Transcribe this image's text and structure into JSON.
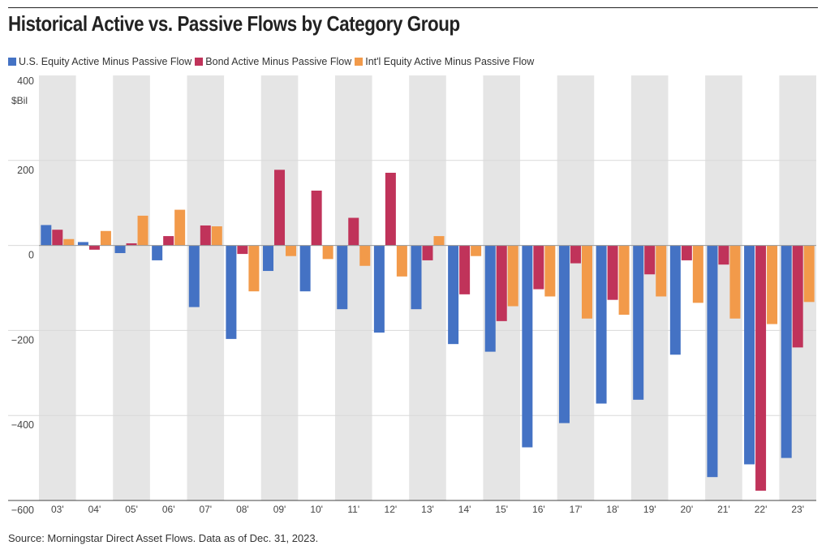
{
  "title": "Historical Active vs. Passive Flows by Category Group",
  "source": "Source: Morningstar Direct Asset Flows. Data as of Dec. 31, 2023.",
  "colors": {
    "us_equity": "#4472c4",
    "bond": "#c0335a",
    "intl_equity": "#f29a4a",
    "shade": "#e5e5e5",
    "grid": "#d9d9d9"
  },
  "chart_data": {
    "type": "bar",
    "title": "Historical Active vs. Passive Flows by Category Group",
    "ylabel": "$Bil",
    "ylim": [
      -600,
      400
    ],
    "yticks": [
      "400",
      "200",
      "0",
      "−200",
      "−400",
      "−600"
    ],
    "ytick_values": [
      400,
      200,
      0,
      -200,
      -400,
      -600
    ],
    "grid": true,
    "legend_position": "top-left",
    "categories": [
      "03'",
      "04'",
      "05'",
      "06'",
      "07'",
      "08'",
      "09'",
      "10'",
      "11'",
      "12'",
      "13'",
      "14'",
      "15'",
      "16'",
      "17'",
      "18'",
      "19'",
      "20'",
      "21'",
      "22'",
      "23'"
    ],
    "series": [
      {
        "name": "U.S. Equity Active Minus Passive Flow",
        "color": "#4472c4",
        "values": [
          48,
          8,
          -18,
          -35,
          -145,
          -220,
          -60,
          -108,
          -150,
          -205,
          -150,
          -232,
          -250,
          -475,
          -418,
          -372,
          -363,
          -257,
          -545,
          -515,
          -500
        ]
      },
      {
        "name": "Bond Active Minus Passive Flow",
        "color": "#c0335a",
        "values": [
          37,
          -10,
          5,
          22,
          47,
          -20,
          178,
          129,
          65,
          171,
          -35,
          -115,
          -178,
          -103,
          -42,
          -128,
          -68,
          -35,
          -45,
          -577,
          -240
        ]
      },
      {
        "name": "Int'l Equity Active Minus Passive Flow",
        "color": "#f29a4a",
        "values": [
          15,
          34,
          70,
          84,
          45,
          -108,
          -25,
          -32,
          -48,
          -73,
          22,
          -25,
          -143,
          -120,
          -172,
          -163,
          -120,
          -135,
          -172,
          -185,
          -133
        ]
      }
    ]
  }
}
